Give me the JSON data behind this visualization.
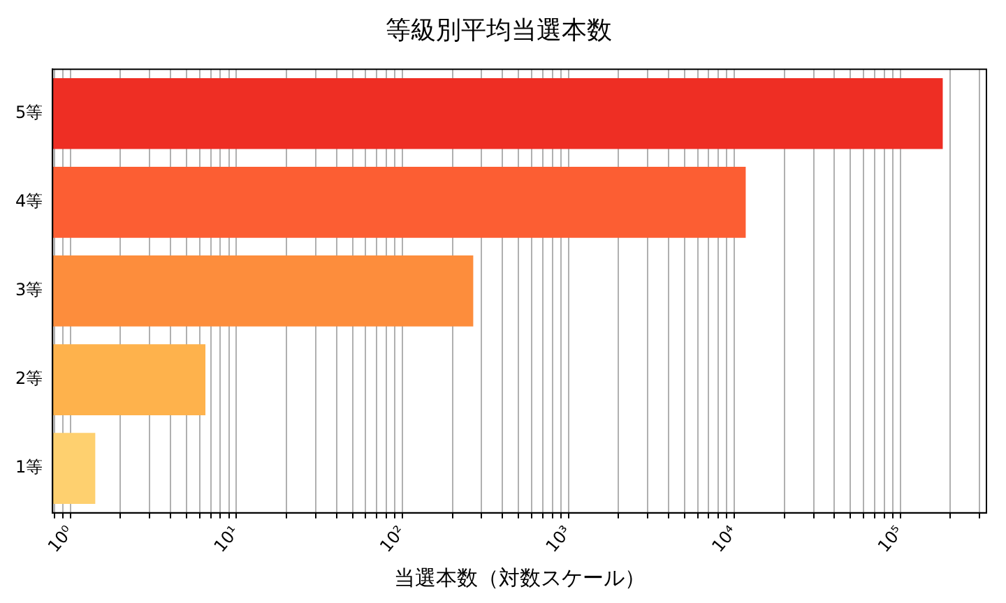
{
  "chart_data": {
    "type": "bar",
    "orientation": "horizontal",
    "title": "等級別平均当選本数",
    "xlabel": "当選本数（対数スケール）",
    "categories": [
      "5等",
      "4等",
      "3等",
      "2等",
      "1等"
    ],
    "values": [
      180000,
      11700,
      267,
      6.5,
      1.41
    ],
    "colors": [
      "#ee2e24",
      "#fc5e33",
      "#fd8d3c",
      "#feb24c",
      "#fed06f"
    ],
    "log": "x",
    "xlim": [
      0.78,
      330000
    ],
    "xticks": [
      {
        "value": 0.8,
        "label": null
      },
      {
        "value": 0.9,
        "label": null
      },
      {
        "value": 1,
        "label": "10⁰"
      },
      {
        "value": 2,
        "label": null
      },
      {
        "value": 3,
        "label": null
      },
      {
        "value": 4,
        "label": null
      },
      {
        "value": 5,
        "label": null
      },
      {
        "value": 6,
        "label": null
      },
      {
        "value": 7,
        "label": null
      },
      {
        "value": 8,
        "label": null
      },
      {
        "value": 9,
        "label": null
      },
      {
        "value": 10,
        "label": "10¹"
      },
      {
        "value": 20,
        "label": null
      },
      {
        "value": 30,
        "label": null
      },
      {
        "value": 40,
        "label": null
      },
      {
        "value": 50,
        "label": null
      },
      {
        "value": 60,
        "label": null
      },
      {
        "value": 70,
        "label": null
      },
      {
        "value": 80,
        "label": null
      },
      {
        "value": 90,
        "label": null
      },
      {
        "value": 100,
        "label": "10²"
      },
      {
        "value": 200,
        "label": null
      },
      {
        "value": 300,
        "label": null
      },
      {
        "value": 400,
        "label": null
      },
      {
        "value": 500,
        "label": null
      },
      {
        "value": 600,
        "label": null
      },
      {
        "value": 700,
        "label": null
      },
      {
        "value": 800,
        "label": null
      },
      {
        "value": 900,
        "label": null
      },
      {
        "value": 1000,
        "label": "10³"
      },
      {
        "value": 2000,
        "label": null
      },
      {
        "value": 3000,
        "label": null
      },
      {
        "value": 4000,
        "label": null
      },
      {
        "value": 5000,
        "label": null
      },
      {
        "value": 6000,
        "label": null
      },
      {
        "value": 7000,
        "label": null
      },
      {
        "value": 8000,
        "label": null
      },
      {
        "value": 9000,
        "label": null
      },
      {
        "value": 10000,
        "label": "10⁴"
      },
      {
        "value": 20000,
        "label": null
      },
      {
        "value": 30000,
        "label": null
      },
      {
        "value": 40000,
        "label": null
      },
      {
        "value": 50000,
        "label": null
      },
      {
        "value": 60000,
        "label": null
      },
      {
        "value": 70000,
        "label": null
      },
      {
        "value": 80000,
        "label": null
      },
      {
        "value": 90000,
        "label": null
      },
      {
        "value": 100000,
        "label": "10⁵"
      },
      {
        "value": 200000,
        "label": null
      },
      {
        "value": 300000,
        "label": null
      }
    ],
    "grid": "x",
    "legend": false
  }
}
